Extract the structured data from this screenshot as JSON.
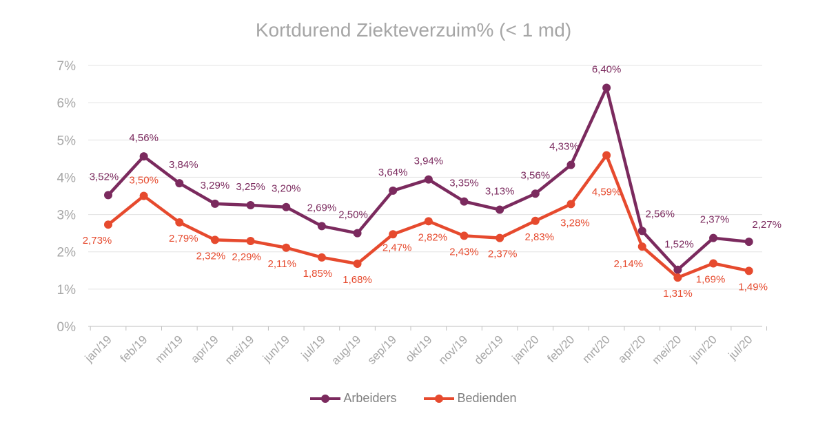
{
  "chart_data": {
    "type": "line",
    "title": "Kortdurend Ziekteverzuim% (< 1 md)",
    "xlabel": "",
    "ylabel": "",
    "ylim": [
      0,
      7
    ],
    "y_ticks": [
      "0%",
      "1%",
      "2%",
      "3%",
      "4%",
      "5%",
      "6%",
      "7%"
    ],
    "grid": true,
    "legend_position": "bottom",
    "categories": [
      "jan/19",
      "feb/19",
      "mrt/19",
      "apr/19",
      "mei/19",
      "jun/19",
      "jul/19",
      "aug/19",
      "sep/19",
      "okt/19",
      "nov/19",
      "dec/19",
      "jan/20",
      "feb/20",
      "mrt/20",
      "apr/20",
      "mei/20",
      "jun/20",
      "jul/20"
    ],
    "series": [
      {
        "name": "Arbeiders",
        "color": "#7b2a5e",
        "values": [
          3.52,
          4.56,
          3.84,
          3.29,
          3.25,
          3.2,
          2.69,
          2.5,
          3.64,
          3.94,
          3.35,
          3.13,
          3.56,
          4.33,
          6.4,
          2.56,
          1.52,
          2.37,
          2.27
        ],
        "labels": [
          "3,52%",
          "4,56%",
          "3,84%",
          "3,29%",
          "3,25%",
          "3,20%",
          "2,69%",
          "2,50%",
          "3,64%",
          "3,94%",
          "3,35%",
          "3,13%",
          "3,56%",
          "4,33%",
          "6,40%",
          "2,56%",
          "1,52%",
          "2,37%",
          "2,27%"
        ]
      },
      {
        "name": "Bedienden",
        "color": "#e64a2e",
        "values": [
          2.73,
          3.5,
          2.79,
          2.32,
          2.29,
          2.11,
          1.85,
          1.68,
          2.47,
          2.82,
          2.43,
          2.37,
          2.83,
          3.28,
          4.59,
          2.14,
          1.31,
          1.69,
          1.49
        ],
        "labels": [
          "2,73%",
          "3,50%",
          "2,79%",
          "2,32%",
          "2,29%",
          "2,11%",
          "1,85%",
          "1,68%",
          "2,47%",
          "2,82%",
          "2,43%",
          "2,37%",
          "2,83%",
          "3,28%",
          "4,59%",
          "2,14%",
          "1,31%",
          "1,69%",
          "1,49%"
        ]
      }
    ]
  }
}
